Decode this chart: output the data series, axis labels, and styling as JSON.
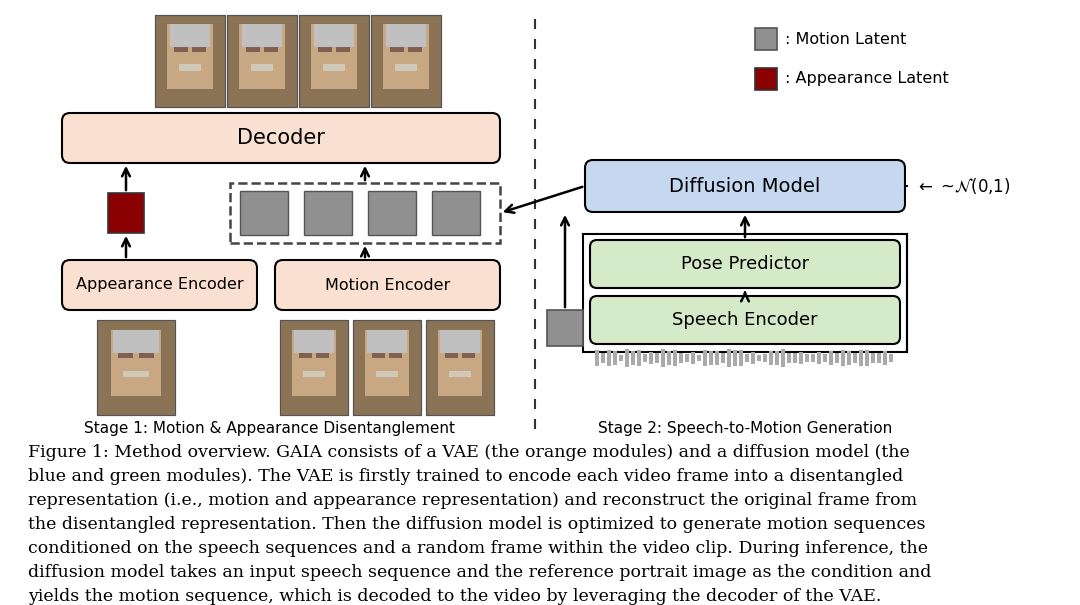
{
  "bg_color": "#ffffff",
  "figure_caption_line1": "Figure 1: Method overview. GAIA consists of a VAE (the orange modules) and a diffusion model (the",
  "figure_caption_line2": "blue and green modules). The VAE is firstly trained to encode each video frame into a disentangled",
  "figure_caption_line3": "representation (i.e., motion and appearance representation) and reconstruct the original frame from",
  "figure_caption_line4": "the disentangled representation. Then the diffusion model is optimized to generate motion sequences",
  "figure_caption_line5": "conditioned on the speech sequences and a random frame within the video clip. During inference, the",
  "figure_caption_line6": "diffusion model takes an input speech sequence and the reference portrait image as the condition and",
  "figure_caption_line7": "yields the motion sequence, which is decoded to the video by leveraging the decoder of the VAE.",
  "orange_fill": "#FAE0D0",
  "blue_fill": "#C5D8F0",
  "green_fill": "#D5EAC8",
  "dark_red_fill": "#8B0000",
  "gray_fill": "#909090",
  "stage1_label": "Stage 1: Motion & Appearance Disentanglement",
  "stage2_label": "Stage 2: Speech-to-Motion Generation",
  "legend_motion": ": Motion Latent",
  "legend_appearance": ": Appearance Latent"
}
